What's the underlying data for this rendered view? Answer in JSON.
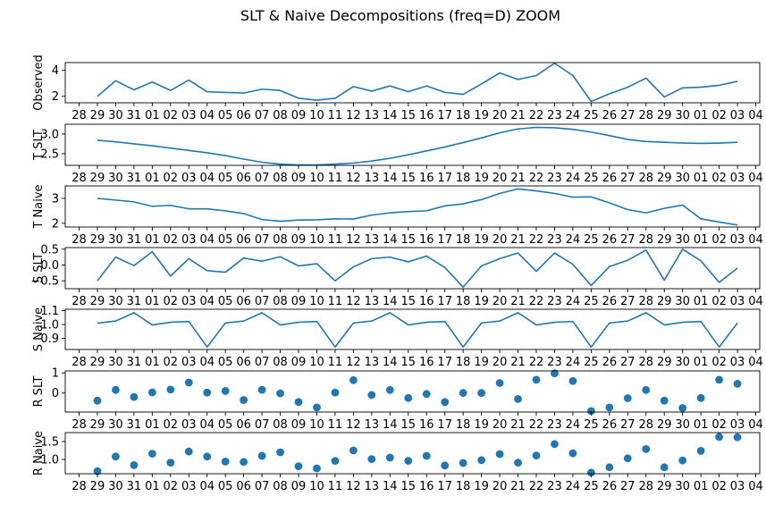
{
  "figure": {
    "title": "SLT & Naive Decompositions (freq=D) ZOOM"
  },
  "chart_data": {
    "type": "line",
    "title": "SLT & Naive Decompositions (freq=D) ZOOM",
    "x_tick_labels": [
      "28",
      "29",
      "30",
      "31",
      "01",
      "02",
      "03",
      "04",
      "05",
      "06",
      "07",
      "08",
      "09",
      "10",
      "11",
      "12",
      "13",
      "14",
      "15",
      "16",
      "17",
      "18",
      "19",
      "20",
      "21",
      "22",
      "23",
      "24",
      "25",
      "26",
      "27",
      "28",
      "29",
      "30",
      "01",
      "02",
      "03",
      "04"
    ],
    "x_dates": [
      "29",
      "30",
      "31",
      "01",
      "02",
      "03",
      "04",
      "05",
      "06",
      "07",
      "08",
      "09",
      "10",
      "11",
      "12",
      "13",
      "14",
      "15",
      "16",
      "17",
      "18",
      "19",
      "20",
      "21",
      "22",
      "23",
      "24",
      "25",
      "26",
      "27",
      "28",
      "29",
      "30",
      "01",
      "02",
      "03"
    ],
    "series_color": "#1f77b4",
    "panels": [
      {
        "ylabel": "Observed",
        "kind": "line",
        "ylim": [
          1.5,
          4.6
        ],
        "yticks": [
          2,
          4
        ],
        "ytick_labels": [
          "2",
          "4"
        ],
        "values": [
          2.0,
          3.2,
          2.5,
          3.1,
          2.45,
          3.25,
          2.35,
          2.3,
          2.25,
          2.55,
          2.45,
          1.85,
          1.7,
          1.85,
          2.75,
          2.4,
          2.8,
          2.35,
          2.8,
          2.3,
          2.15,
          2.95,
          3.8,
          3.3,
          3.6,
          4.55,
          3.6,
          1.6,
          2.2,
          2.7,
          3.4,
          1.95,
          2.65,
          2.7,
          2.85,
          3.15
        ]
      },
      {
        "ylabel": "T SLT",
        "kind": "line",
        "ylim": [
          2.2,
          3.25
        ],
        "yticks": [
          2.5,
          3.0
        ],
        "ytick_labels": [
          "2.5",
          "3.0"
        ],
        "values": [
          2.84,
          2.8,
          2.75,
          2.7,
          2.64,
          2.58,
          2.52,
          2.45,
          2.36,
          2.28,
          2.23,
          2.21,
          2.21,
          2.23,
          2.26,
          2.31,
          2.38,
          2.47,
          2.57,
          2.67,
          2.78,
          2.9,
          3.03,
          3.13,
          3.17,
          3.16,
          3.12,
          3.05,
          2.96,
          2.86,
          2.81,
          2.79,
          2.77,
          2.76,
          2.77,
          2.79
        ]
      },
      {
        "ylabel": "T Naive",
        "kind": "line",
        "ylim": [
          1.85,
          3.5
        ],
        "yticks": [
          2,
          3
        ],
        "ytick_labels": [
          "2",
          "3"
        ],
        "values": [
          3.0,
          2.93,
          2.86,
          2.68,
          2.72,
          2.58,
          2.58,
          2.5,
          2.39,
          2.15,
          2.08,
          2.13,
          2.14,
          2.18,
          2.17,
          2.33,
          2.42,
          2.47,
          2.5,
          2.7,
          2.78,
          2.95,
          3.2,
          3.38,
          3.3,
          3.2,
          3.05,
          3.06,
          2.82,
          2.55,
          2.42,
          2.6,
          2.73,
          2.18,
          2.05,
          1.93
        ]
      },
      {
        "ylabel": "S SLT",
        "kind": "line",
        "ylim": [
          -0.75,
          0.55
        ],
        "yticks": [
          -0.5,
          0.0,
          0.5
        ],
        "ytick_labels": [
          "−0.5",
          "0.0",
          "0.5"
        ],
        "values": [
          -0.5,
          0.25,
          -0.02,
          0.42,
          -0.35,
          0.2,
          -0.18,
          -0.23,
          0.22,
          0.12,
          0.26,
          -0.03,
          0.04,
          -0.5,
          -0.06,
          0.2,
          0.25,
          0.1,
          0.28,
          -0.08,
          -0.7,
          -0.03,
          0.2,
          0.38,
          -0.2,
          0.38,
          0.02,
          -0.65,
          -0.05,
          0.15,
          0.47,
          -0.48,
          0.5,
          0.13,
          -0.55,
          -0.1
        ]
      },
      {
        "ylabel": "S Naive",
        "kind": "line",
        "ylim": [
          0.82,
          1.11
        ],
        "yticks": [
          0.9,
          1.0,
          1.1
        ],
        "ytick_labels": [
          "0.9",
          "1.0",
          "1.1"
        ],
        "values": [
          1.01,
          1.025,
          1.085,
          0.997,
          1.016,
          1.022,
          0.838,
          1.011,
          1.025,
          1.085,
          0.997,
          1.016,
          1.022,
          0.838,
          1.011,
          1.025,
          1.085,
          0.997,
          1.016,
          1.022,
          0.838,
          1.011,
          1.025,
          1.085,
          0.997,
          1.016,
          1.022,
          0.838,
          1.011,
          1.025,
          1.085,
          0.997,
          1.016,
          1.022,
          0.838,
          1.011
        ]
      },
      {
        "ylabel": "R SLT",
        "kind": "scatter",
        "ylim": [
          -0.95,
          1.1
        ],
        "yticks": [
          0,
          1
        ],
        "ytick_labels": [
          "0",
          "1"
        ],
        "values": [
          -0.38,
          0.15,
          -0.2,
          0.03,
          0.17,
          0.52,
          0.02,
          0.1,
          -0.35,
          0.16,
          -0.02,
          -0.45,
          -0.72,
          0.02,
          0.64,
          -0.1,
          0.15,
          -0.25,
          -0.05,
          -0.45,
          0.0,
          0.0,
          0.5,
          -0.3,
          0.66,
          0.98,
          0.6,
          -0.9,
          -0.72,
          -0.26,
          0.15,
          -0.38,
          -0.75,
          -0.25,
          0.66,
          0.46
        ]
      },
      {
        "ylabel": "R Naive",
        "kind": "scatter",
        "ylim": [
          0.6,
          1.75
        ],
        "yticks": [
          1.0,
          1.5
        ],
        "ytick_labels": [
          "1.0",
          "1.5"
        ],
        "values": [
          0.67,
          1.08,
          0.84,
          1.16,
          0.91,
          1.22,
          1.08,
          0.94,
          0.93,
          1.1,
          1.2,
          0.81,
          0.75,
          0.96,
          1.25,
          1.01,
          1.05,
          0.96,
          1.1,
          0.83,
          0.9,
          0.98,
          1.15,
          0.91,
          1.11,
          1.43,
          1.17,
          0.63,
          0.78,
          1.03,
          1.29,
          0.78,
          0.97,
          1.24,
          1.63,
          1.62
        ]
      }
    ]
  }
}
